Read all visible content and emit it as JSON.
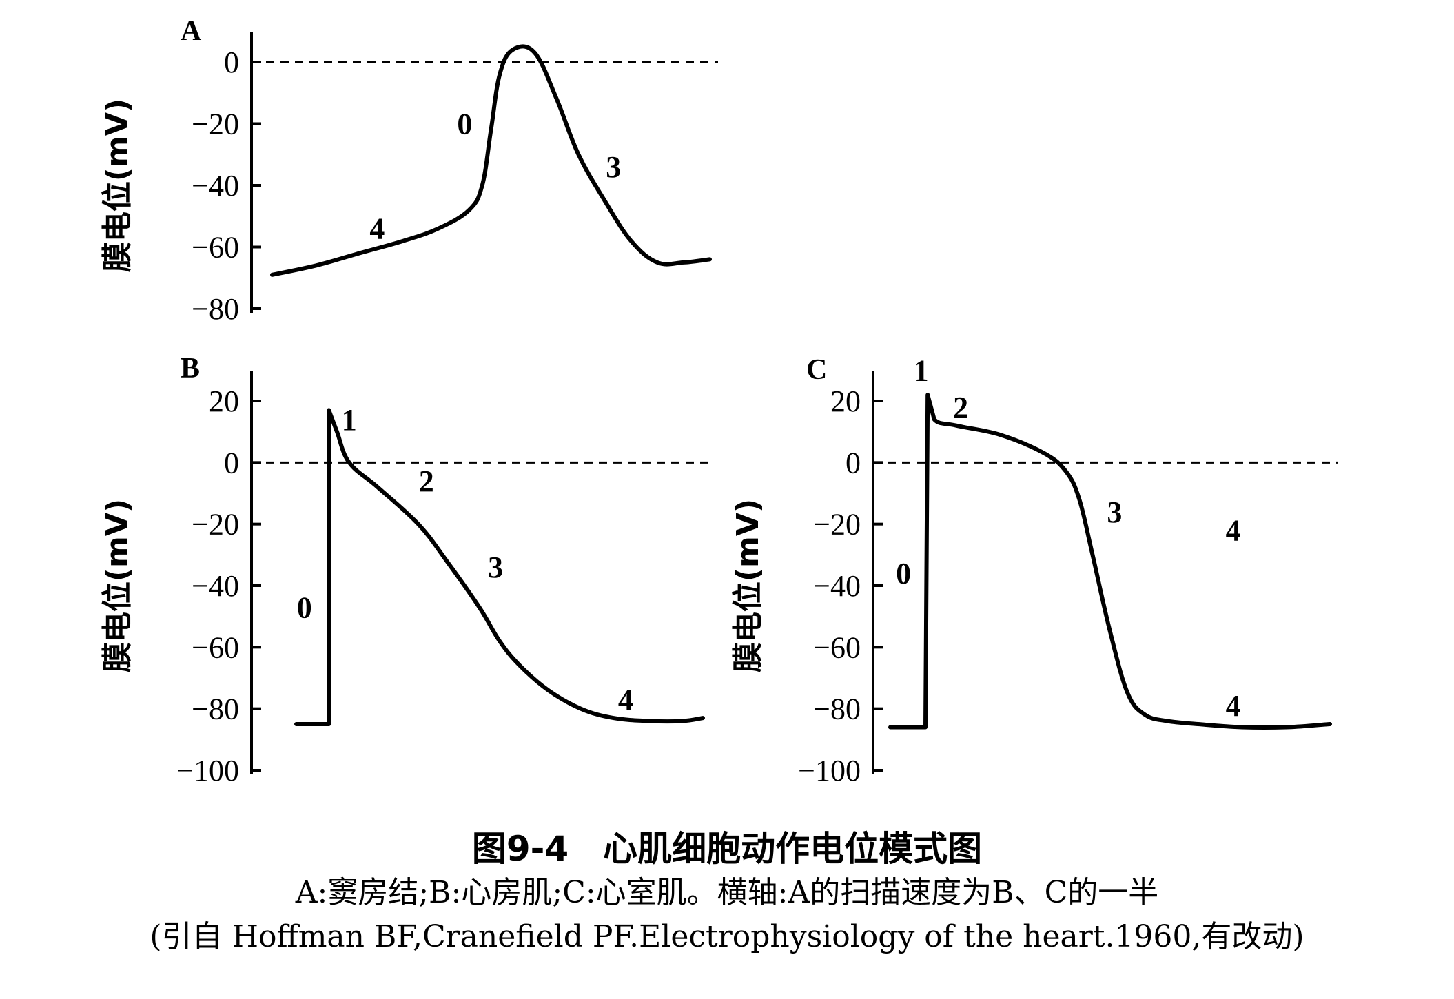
{
  "figure": {
    "title": "图9-4　心肌细胞动作电位模式图",
    "caption_line1": "A:窦房结;B:心房肌;C:心室肌。横轴:A的扫描速度为B、C的一半",
    "caption_line2": "(引自 Hoffman BF,Cranefield PF.Electrophysiology of the heart.1960,有改动)"
  },
  "chart_data": [
    {
      "id": "A",
      "type": "line",
      "panel_label": "A",
      "ylabel": "膜电位(mV)",
      "xlabel": "",
      "ylim": [
        -80,
        0
      ],
      "yticks": [
        0,
        -20,
        -40,
        -60,
        -80
      ],
      "ytick_labels": [
        "0",
        "−20",
        "−40",
        "−60",
        "−80"
      ],
      "reference_line": 0,
      "x_units": "relative time (0–1)",
      "series": [
        {
          "x": [
            0.0,
            0.1,
            0.2,
            0.3,
            0.38,
            0.45,
            0.48,
            0.5,
            0.52,
            0.55,
            0.6,
            0.65,
            0.7,
            0.76,
            0.82,
            0.88,
            0.94,
            1.0
          ],
          "y": [
            -69,
            -66,
            -62,
            -58,
            -54,
            -48,
            -40,
            -22,
            -4,
            4,
            3,
            -12,
            -30,
            -45,
            -58,
            -65,
            -65,
            -64
          ]
        }
      ],
      "phase_labels": [
        {
          "text": "4",
          "x": 0.24,
          "y": -54
        },
        {
          "text": "0",
          "x": 0.44,
          "y": -20
        },
        {
          "text": "3",
          "x": 0.78,
          "y": -34
        }
      ]
    },
    {
      "id": "B",
      "type": "line",
      "panel_label": "B",
      "ylabel": "膜电位(mV)",
      "xlabel": "",
      "ylim": [
        -100,
        20
      ],
      "yticks": [
        20,
        0,
        -20,
        -40,
        -60,
        -80,
        -100
      ],
      "ytick_labels": [
        "20",
        "0",
        "−20",
        "−40",
        "−60",
        "−80",
        "−100"
      ],
      "reference_line": 0,
      "x_units": "relative time (0–1)",
      "series": [
        {
          "x": [
            0.0,
            0.08,
            0.08,
            0.1,
            0.13,
            0.2,
            0.3,
            0.37,
            0.45,
            0.5,
            0.55,
            0.62,
            0.7,
            0.78,
            0.87,
            0.95,
            1.0
          ],
          "y": [
            -85,
            -85,
            17,
            10,
            0,
            -8,
            -20,
            -32,
            -47,
            -58,
            -66,
            -74,
            -80,
            -83,
            -84,
            -84,
            -83
          ]
        }
      ],
      "phase_labels": [
        {
          "text": "1",
          "x": 0.13,
          "y": 14
        },
        {
          "text": "0",
          "x": 0.02,
          "y": -47
        },
        {
          "text": "2",
          "x": 0.32,
          "y": -6
        },
        {
          "text": "3",
          "x": 0.49,
          "y": -34
        },
        {
          "text": "4",
          "x": 0.81,
          "y": -77
        }
      ]
    },
    {
      "id": "C",
      "type": "line",
      "panel_label": "C",
      "ylabel": "膜电位(mV)",
      "xlabel": "",
      "ylim": [
        -100,
        20
      ],
      "yticks": [
        20,
        0,
        -20,
        -40,
        -60,
        -80,
        -100
      ],
      "ytick_labels": [
        "20",
        "0",
        "−20",
        "−40",
        "−60",
        "−80",
        "−100"
      ],
      "reference_line": 0,
      "x_units": "relative time (0–1)",
      "series": [
        {
          "x": [
            0.0,
            0.08,
            0.085,
            0.1,
            0.15,
            0.25,
            0.35,
            0.4,
            0.43,
            0.46,
            0.5,
            0.54,
            0.58,
            0.63,
            0.7,
            0.8,
            0.9,
            1.0
          ],
          "y": [
            -86,
            -86,
            22,
            14,
            12,
            9,
            3,
            -3,
            -12,
            -30,
            -55,
            -75,
            -82,
            -84,
            -85,
            -86,
            -86,
            -85
          ]
        }
      ],
      "phase_labels": [
        {
          "text": "1",
          "x": 0.07,
          "y": 30
        },
        {
          "text": "2",
          "x": 0.16,
          "y": 18
        },
        {
          "text": "0",
          "x": 0.03,
          "y": -36
        },
        {
          "text": "3",
          "x": 0.51,
          "y": -16
        },
        {
          "text": "4",
          "x": 0.78,
          "y": -22
        },
        {
          "text": "4",
          "x": 0.78,
          "y": -79
        }
      ]
    }
  ]
}
